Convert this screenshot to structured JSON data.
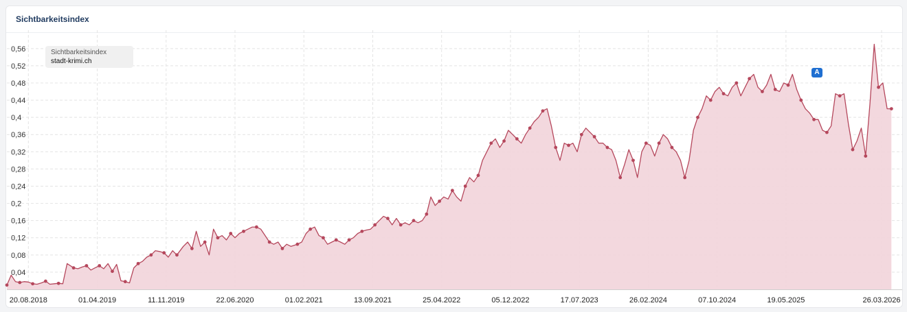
{
  "header": {
    "title": "Sichtbarkeitsindex"
  },
  "legend": {
    "series": "Sichtbarkeitsindex",
    "domain": "stadt-krimi.ch"
  },
  "colors": {
    "line": "#b5475c",
    "fill": "#f2d4da",
    "grid": "#e4e4e4",
    "marker_a": "#1f6fd1"
  },
  "event_marker": {
    "label": "A",
    "date": "19.05.2025"
  },
  "chart_data": {
    "type": "area",
    "title": "Sichtbarkeitsindex",
    "series_name": "stadt-krimi.ch",
    "ylim": [
      0,
      0.59
    ],
    "y_ticks": [
      "0,04",
      "0,08",
      "0,12",
      "0,16",
      "0,2",
      "0,24",
      "0,28",
      "0,32",
      "0,36",
      "0,4",
      "0,44",
      "0,48",
      "0,52",
      "0,56"
    ],
    "x_ticks": [
      "20.08.2018",
      "01.04.2019",
      "11.11.2019",
      "22.06.2020",
      "01.02.2021",
      "13.09.2021",
      "25.04.2022",
      "05.12.2022",
      "17.07.2023",
      "26.02.2024",
      "07.10.2024",
      "19.05.2025",
      "26.03.2026"
    ],
    "x_range": [
      "2018-06-11",
      "2026-06-01"
    ],
    "grid": true,
    "points": [
      [
        "2018-06-11",
        0.01
      ],
      [
        "2018-06-25",
        0.033
      ],
      [
        "2018-07-09",
        0.018
      ],
      [
        "2018-07-23",
        0.016
      ],
      [
        "2018-08-06",
        0.018
      ],
      [
        "2018-08-20",
        0.017
      ],
      [
        "2018-09-03",
        0.013
      ],
      [
        "2018-09-17",
        0.012
      ],
      [
        "2018-10-01",
        0.015
      ],
      [
        "2018-10-15",
        0.019
      ],
      [
        "2018-10-29",
        0.012
      ],
      [
        "2018-11-12",
        0.013
      ],
      [
        "2018-11-26",
        0.014
      ],
      [
        "2018-12-10",
        0.013
      ],
      [
        "2018-12-24",
        0.06
      ],
      [
        "2019-01-14",
        0.05
      ],
      [
        "2019-01-28",
        0.048
      ],
      [
        "2019-02-11",
        0.052
      ],
      [
        "2019-02-25",
        0.055
      ],
      [
        "2019-03-11",
        0.045
      ],
      [
        "2019-03-25",
        0.05
      ],
      [
        "2019-04-08",
        0.055
      ],
      [
        "2019-04-22",
        0.048
      ],
      [
        "2019-05-06",
        0.06
      ],
      [
        "2019-05-20",
        0.042
      ],
      [
        "2019-06-03",
        0.058
      ],
      [
        "2019-06-17",
        0.02
      ],
      [
        "2019-07-01",
        0.018
      ],
      [
        "2019-07-15",
        0.015
      ],
      [
        "2019-07-29",
        0.05
      ],
      [
        "2019-08-12",
        0.06
      ],
      [
        "2019-08-26",
        0.065
      ],
      [
        "2019-09-09",
        0.075
      ],
      [
        "2019-09-23",
        0.08
      ],
      [
        "2019-10-07",
        0.09
      ],
      [
        "2019-10-21",
        0.088
      ],
      [
        "2019-11-04",
        0.085
      ],
      [
        "2019-11-18",
        0.075
      ],
      [
        "2019-12-02",
        0.09
      ],
      [
        "2019-12-16",
        0.08
      ],
      [
        "2020-01-06",
        0.1
      ],
      [
        "2020-01-20",
        0.11
      ],
      [
        "2020-02-03",
        0.095
      ],
      [
        "2020-02-17",
        0.135
      ],
      [
        "2020-03-02",
        0.1
      ],
      [
        "2020-03-16",
        0.11
      ],
      [
        "2020-03-30",
        0.08
      ],
      [
        "2020-04-13",
        0.14
      ],
      [
        "2020-04-27",
        0.12
      ],
      [
        "2020-05-11",
        0.125
      ],
      [
        "2020-05-25",
        0.115
      ],
      [
        "2020-06-08",
        0.13
      ],
      [
        "2020-06-22",
        0.12
      ],
      [
        "2020-07-06",
        0.13
      ],
      [
        "2020-07-20",
        0.135
      ],
      [
        "2020-08-03",
        0.14
      ],
      [
        "2020-08-17",
        0.145
      ],
      [
        "2020-08-31",
        0.145
      ],
      [
        "2020-09-14",
        0.14
      ],
      [
        "2020-09-28",
        0.125
      ],
      [
        "2020-10-12",
        0.11
      ],
      [
        "2020-10-26",
        0.105
      ],
      [
        "2020-11-09",
        0.11
      ],
      [
        "2020-11-23",
        0.095
      ],
      [
        "2020-12-07",
        0.105
      ],
      [
        "2020-12-21",
        0.1
      ],
      [
        "2021-01-11",
        0.105
      ],
      [
        "2021-01-25",
        0.11
      ],
      [
        "2021-02-08",
        0.13
      ],
      [
        "2021-02-22",
        0.14
      ],
      [
        "2021-03-08",
        0.145
      ],
      [
        "2021-03-22",
        0.125
      ],
      [
        "2021-04-05",
        0.12
      ],
      [
        "2021-04-19",
        0.105
      ],
      [
        "2021-05-03",
        0.11
      ],
      [
        "2021-05-17",
        0.115
      ],
      [
        "2021-05-31",
        0.11
      ],
      [
        "2021-06-14",
        0.105
      ],
      [
        "2021-06-28",
        0.115
      ],
      [
        "2021-07-12",
        0.12
      ],
      [
        "2021-07-26",
        0.13
      ],
      [
        "2021-08-09",
        0.135
      ],
      [
        "2021-08-23",
        0.138
      ],
      [
        "2021-09-06",
        0.14
      ],
      [
        "2021-09-20",
        0.15
      ],
      [
        "2021-10-04",
        0.16
      ],
      [
        "2021-10-18",
        0.17
      ],
      [
        "2021-11-01",
        0.165
      ],
      [
        "2021-11-15",
        0.15
      ],
      [
        "2021-11-29",
        0.165
      ],
      [
        "2021-12-13",
        0.15
      ],
      [
        "2021-12-27",
        0.155
      ],
      [
        "2022-01-10",
        0.15
      ],
      [
        "2022-01-24",
        0.16
      ],
      [
        "2022-02-07",
        0.155
      ],
      [
        "2022-02-21",
        0.16
      ],
      [
        "2022-03-07",
        0.175
      ],
      [
        "2022-03-21",
        0.215
      ],
      [
        "2022-04-04",
        0.195
      ],
      [
        "2022-04-18",
        0.205
      ],
      [
        "2022-05-02",
        0.215
      ],
      [
        "2022-05-16",
        0.21
      ],
      [
        "2022-05-30",
        0.23
      ],
      [
        "2022-06-13",
        0.215
      ],
      [
        "2022-06-27",
        0.205
      ],
      [
        "2022-07-11",
        0.24
      ],
      [
        "2022-07-25",
        0.26
      ],
      [
        "2022-08-08",
        0.25
      ],
      [
        "2022-08-22",
        0.265
      ],
      [
        "2022-09-05",
        0.3
      ],
      [
        "2022-09-19",
        0.32
      ],
      [
        "2022-10-03",
        0.34
      ],
      [
        "2022-10-17",
        0.35
      ],
      [
        "2022-10-31",
        0.33
      ],
      [
        "2022-11-14",
        0.345
      ],
      [
        "2022-11-28",
        0.37
      ],
      [
        "2022-12-12",
        0.36
      ],
      [
        "2022-12-26",
        0.35
      ],
      [
        "2023-01-09",
        0.34
      ],
      [
        "2023-01-23",
        0.36
      ],
      [
        "2023-02-06",
        0.375
      ],
      [
        "2023-02-20",
        0.39
      ],
      [
        "2023-03-06",
        0.4
      ],
      [
        "2023-03-20",
        0.415
      ],
      [
        "2023-04-03",
        0.42
      ],
      [
        "2023-04-17",
        0.38
      ],
      [
        "2023-05-01",
        0.33
      ],
      [
        "2023-05-15",
        0.3
      ],
      [
        "2023-05-29",
        0.34
      ],
      [
        "2023-06-12",
        0.335
      ],
      [
        "2023-06-26",
        0.34
      ],
      [
        "2023-07-10",
        0.32
      ],
      [
        "2023-07-24",
        0.36
      ],
      [
        "2023-08-07",
        0.375
      ],
      [
        "2023-08-21",
        0.365
      ],
      [
        "2023-09-04",
        0.355
      ],
      [
        "2023-09-18",
        0.34
      ],
      [
        "2023-10-02",
        0.34
      ],
      [
        "2023-10-16",
        0.33
      ],
      [
        "2023-10-30",
        0.325
      ],
      [
        "2023-11-13",
        0.3
      ],
      [
        "2023-11-27",
        0.26
      ],
      [
        "2023-12-11",
        0.29
      ],
      [
        "2023-12-25",
        0.325
      ],
      [
        "2024-01-08",
        0.3
      ],
      [
        "2024-01-22",
        0.26
      ],
      [
        "2024-02-05",
        0.32
      ],
      [
        "2024-02-19",
        0.34
      ],
      [
        "2024-03-04",
        0.335
      ],
      [
        "2024-03-18",
        0.31
      ],
      [
        "2024-04-01",
        0.34
      ],
      [
        "2024-04-15",
        0.36
      ],
      [
        "2024-04-29",
        0.35
      ],
      [
        "2024-05-13",
        0.33
      ],
      [
        "2024-05-27",
        0.32
      ],
      [
        "2024-06-10",
        0.3
      ],
      [
        "2024-06-24",
        0.26
      ],
      [
        "2024-07-08",
        0.3
      ],
      [
        "2024-07-22",
        0.37
      ],
      [
        "2024-08-05",
        0.4
      ],
      [
        "2024-08-19",
        0.42
      ],
      [
        "2024-09-02",
        0.45
      ],
      [
        "2024-09-16",
        0.44
      ],
      [
        "2024-09-30",
        0.46
      ],
      [
        "2024-10-14",
        0.47
      ],
      [
        "2024-10-28",
        0.455
      ],
      [
        "2024-11-11",
        0.45
      ],
      [
        "2024-11-25",
        0.47
      ],
      [
        "2024-12-09",
        0.48
      ],
      [
        "2024-12-23",
        0.45
      ],
      [
        "2025-01-06",
        0.47
      ],
      [
        "2025-01-20",
        0.49
      ],
      [
        "2025-02-03",
        0.5
      ],
      [
        "2025-02-17",
        0.47
      ],
      [
        "2025-03-03",
        0.46
      ],
      [
        "2025-03-17",
        0.475
      ],
      [
        "2025-03-31",
        0.5
      ],
      [
        "2025-04-14",
        0.465
      ],
      [
        "2025-04-28",
        0.46
      ],
      [
        "2025-05-12",
        0.48
      ],
      [
        "2025-05-26",
        0.475
      ],
      [
        "2025-06-09",
        0.5
      ],
      [
        "2025-06-23",
        0.465
      ],
      [
        "2025-07-07",
        0.44
      ],
      [
        "2025-07-21",
        0.42
      ],
      [
        "2025-08-04",
        0.41
      ],
      [
        "2025-08-18",
        0.395
      ],
      [
        "2025-09-01",
        0.395
      ],
      [
        "2025-09-15",
        0.37
      ],
      [
        "2025-09-29",
        0.365
      ],
      [
        "2025-10-13",
        0.38
      ],
      [
        "2025-10-27",
        0.455
      ],
      [
        "2025-11-10",
        0.45
      ],
      [
        "2025-11-24",
        0.455
      ],
      [
        "2025-12-08",
        0.385
      ],
      [
        "2025-12-22",
        0.325
      ],
      [
        "2026-01-05",
        0.345
      ],
      [
        "2026-01-19",
        0.375
      ],
      [
        "2026-02-02",
        0.31
      ],
      [
        "2026-02-16",
        0.43
      ],
      [
        "2026-03-02",
        0.57
      ],
      [
        "2026-03-16",
        0.47
      ],
      [
        "2026-03-30",
        0.48
      ],
      [
        "2026-04-13",
        0.42
      ],
      [
        "2026-04-27",
        0.42
      ]
    ]
  }
}
